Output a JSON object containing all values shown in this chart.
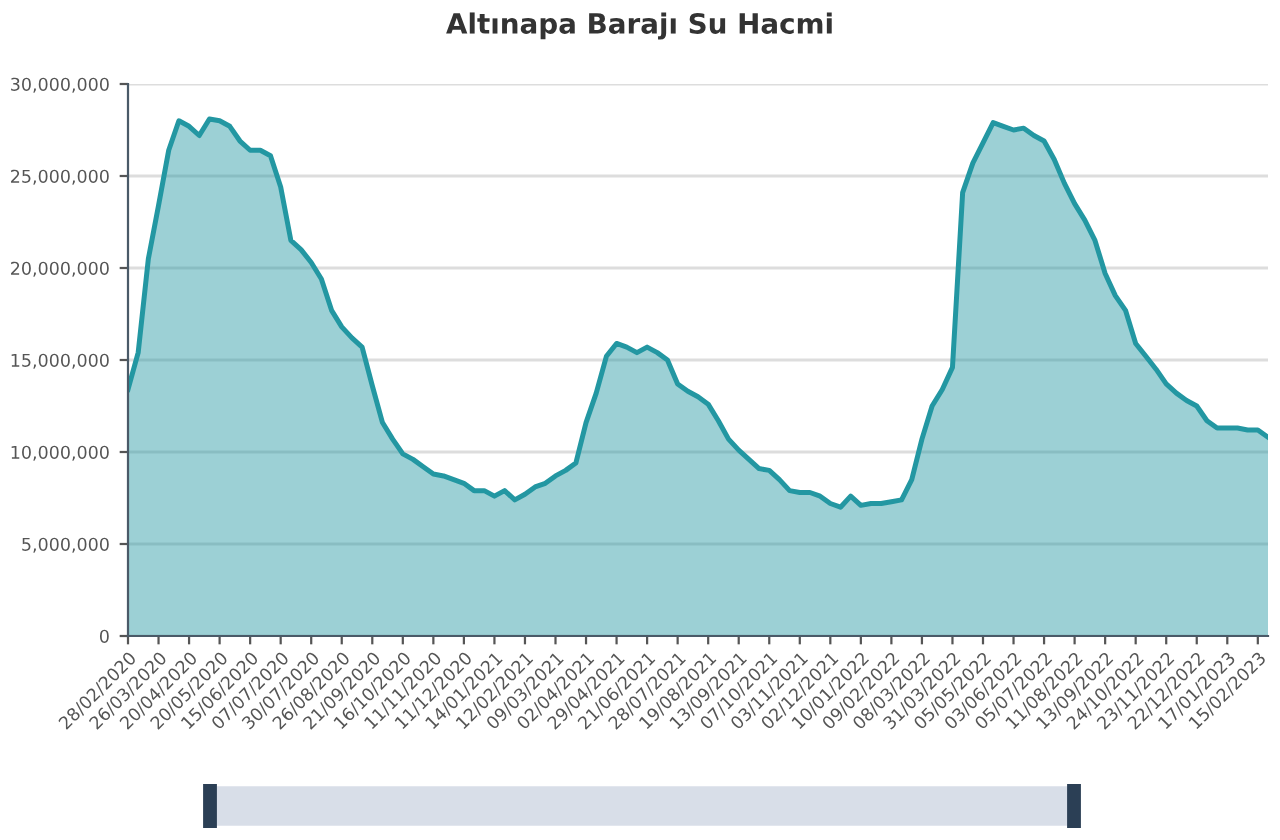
{
  "chart_data": {
    "type": "area",
    "title": "Altınapa Barajı Su Hacmi",
    "categories": [
      "28/02/2020",
      null,
      null,
      "26/03/2020",
      null,
      null,
      "20/04/2020",
      null,
      null,
      "20/05/2020",
      null,
      null,
      "15/06/2020",
      null,
      null,
      "07/07/2020",
      null,
      null,
      "30/07/2020",
      null,
      null,
      "26/08/2020",
      null,
      null,
      "21/09/2020",
      null,
      null,
      "16/10/2020",
      null,
      null,
      "11/11/2020",
      null,
      null,
      "11/12/2020",
      null,
      null,
      "14/01/2021",
      null,
      null,
      "12/02/2021",
      null,
      null,
      "09/03/2021",
      null,
      null,
      "02/04/2021",
      null,
      null,
      "29/04/2021",
      null,
      null,
      "21/06/2021",
      null,
      null,
      "28/07/2021",
      null,
      null,
      "19/08/2021",
      null,
      null,
      "13/09/2021",
      null,
      null,
      "07/10/2021",
      null,
      null,
      "03/11/2021",
      null,
      null,
      "02/12/2021",
      null,
      null,
      "10/01/2022",
      null,
      null,
      "09/02/2022",
      null,
      null,
      "08/03/2022",
      null,
      null,
      "31/03/2022",
      null,
      null,
      "05/05/2022",
      null,
      null,
      "03/06/2022",
      null,
      null,
      "05/07/2022",
      null,
      null,
      "11/08/2022",
      null,
      null,
      "13/09/2022",
      null,
      null,
      "24/10/2022",
      null,
      null,
      "23/11/2022",
      null,
      null,
      "22/12/2022",
      null,
      null,
      "17/01/2023",
      null,
      null,
      "15/02/2023",
      null
    ],
    "series": [
      {
        "color": "#2397a2",
        "values": [
          13400000,
          15400000,
          20500000,
          23400000,
          26400000,
          28000000,
          27700000,
          27200000,
          28100000,
          28000000,
          27700000,
          26900000,
          26400000,
          26400000,
          26100000,
          24400000,
          21500000,
          21000000,
          20300000,
          19400000,
          17700000,
          16800000,
          16200000,
          15700000,
          13600000,
          11600000,
          10700000,
          9900000,
          9600000,
          9200000,
          8800000,
          8700000,
          8500000,
          8300000,
          7900000,
          7900000,
          7600000,
          7900000,
          7400000,
          7700000,
          8100000,
          8300000,
          8700000,
          9000000,
          9400000,
          11600000,
          13200000,
          15200000,
          15900000,
          15700000,
          15400000,
          15700000,
          15400000,
          15000000,
          13700000,
          13300000,
          13000000,
          12600000,
          11700000,
          10700000,
          10100000,
          9600000,
          9100000,
          9000000,
          8500000,
          7900000,
          7800000,
          7800000,
          7600000,
          7200000,
          7000000,
          7600000,
          7100000,
          7200000,
          7200000,
          7300000,
          7400000,
          8500000,
          10700000,
          12500000,
          13400000,
          14600000,
          24100000,
          25700000,
          26800000,
          27900000,
          27700000,
          27500000,
          27600000,
          27200000,
          26900000,
          25900000,
          24600000,
          23500000,
          22600000,
          21500000,
          19700000,
          18500000,
          17700000,
          15900000,
          15200000,
          14500000,
          13700000,
          13200000,
          12800000,
          12500000,
          11700000,
          11300000,
          11300000,
          11300000,
          11200000,
          11200000,
          10800000
        ]
      }
    ],
    "ylim": [
      0,
      30000000
    ],
    "yticks": [
      0,
      {
        "value": 5000000,
        "label": "5,000,000"
      },
      {
        "value": 10000000,
        "label": "10,000,000"
      },
      {
        "value": 15000000,
        "label": "15,000,000"
      },
      {
        "value": 20000000,
        "label": "20,000,000"
      },
      {
        "value": 25000000,
        "label": "25,000,000"
      },
      {
        "value": 30000000,
        "label": "30,000,000"
      }
    ],
    "grid": "y"
  }
}
